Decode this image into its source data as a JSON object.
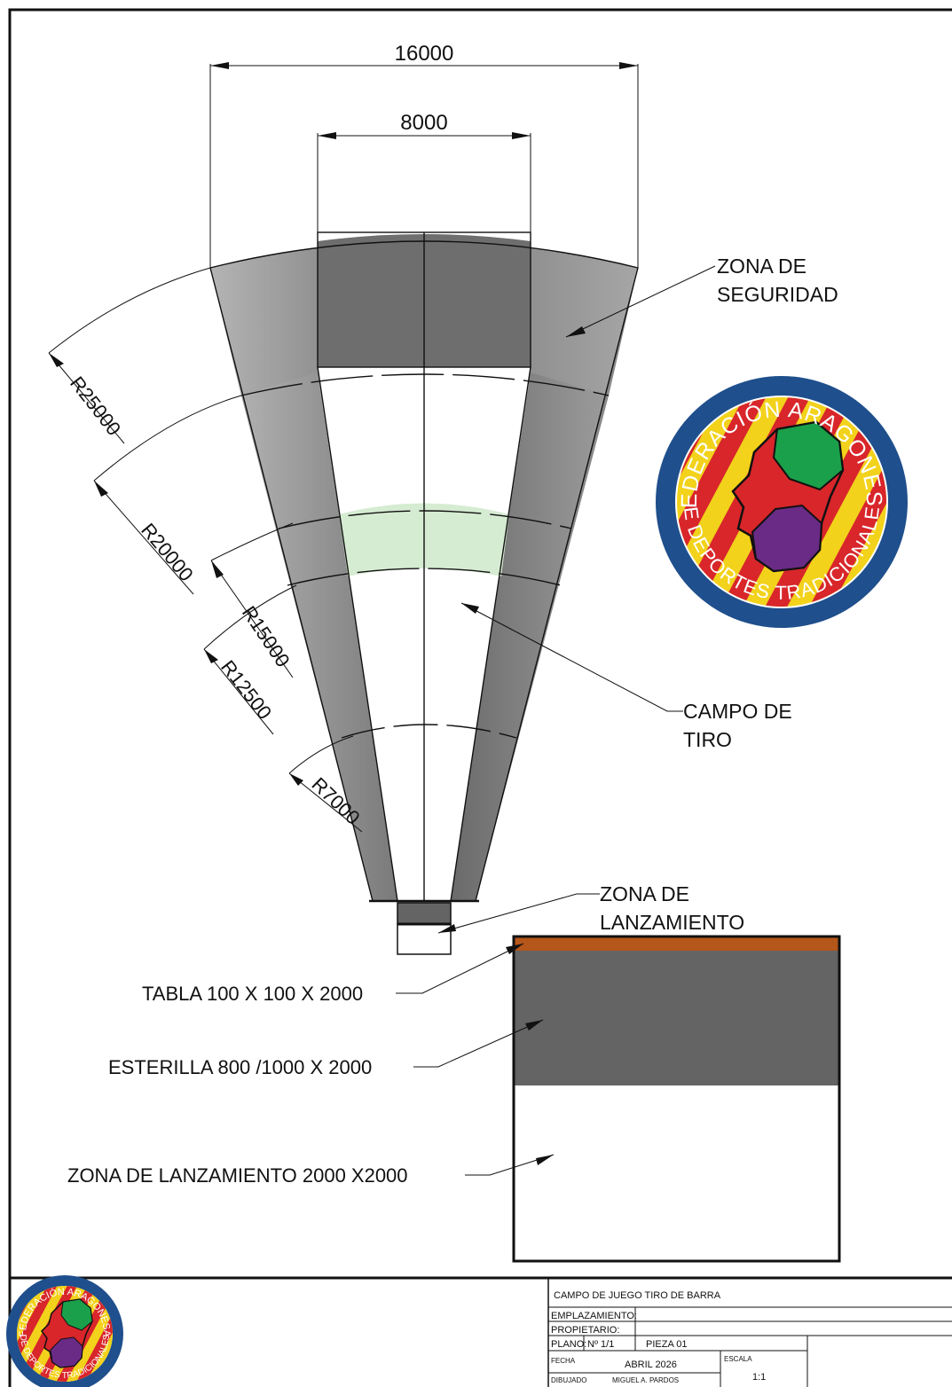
{
  "dimensions": {
    "width_16000": "16000",
    "width_8000": "8000",
    "r25000": "R25000",
    "r20000": "R20000",
    "r15000": "R15000",
    "r12500": "R12500",
    "r7000": "R7000"
  },
  "callouts": {
    "zona_seguridad_1": "ZONA DE",
    "zona_seguridad_2": "SEGURIDAD",
    "campo_tiro_1": "CAMPO DE",
    "campo_tiro_2": "TIRO",
    "zona_lanz_1": "ZONA DE",
    "zona_lanz_2": "LANZAMIENTO",
    "tabla": "TABLA 100 X 100 X 2000",
    "esterilla": "ESTERILLA 800 /1000 X 2000",
    "zona_lanz_detalle": "ZONA DE LANZAMIENTO  2000 X2000"
  },
  "logo": {
    "top_text": "FEDERACIÓN ARAGONESA",
    "bottom_text": "DE DEPORTES TRADICIONALES",
    "colors": {
      "ring": "#1f4f8c",
      "yellow": "#f2d21b",
      "red": "#d8262b",
      "green": "#1aa04a",
      "purple": "#6a2b86"
    }
  },
  "title_block": {
    "title": "CAMPO DE  JUEGO  TIRO  DE  BARRA",
    "emplazamiento_label": "EMPLAZAMIENTO:",
    "propietario_label": "PROPIETARIO:",
    "plano_label": "PLANO:",
    "plano_value": "Nº  1/1",
    "pieza": "PIEZA  01",
    "fecha_label": "FECHA",
    "fecha_value": "ABRIL  2026",
    "escala_label": "ESCALA",
    "escala_value": "1:1",
    "dibujado_label": "DIBUJADO",
    "dibujado_value": "MIGUEL A. PARDOS"
  },
  "colors": {
    "sector_dark": "#6d6d6d",
    "sector_light": "#a9a9a9",
    "zone_green": "#d6ecd2",
    "tabla": "#b5561a",
    "esterilla": "#646464"
  }
}
